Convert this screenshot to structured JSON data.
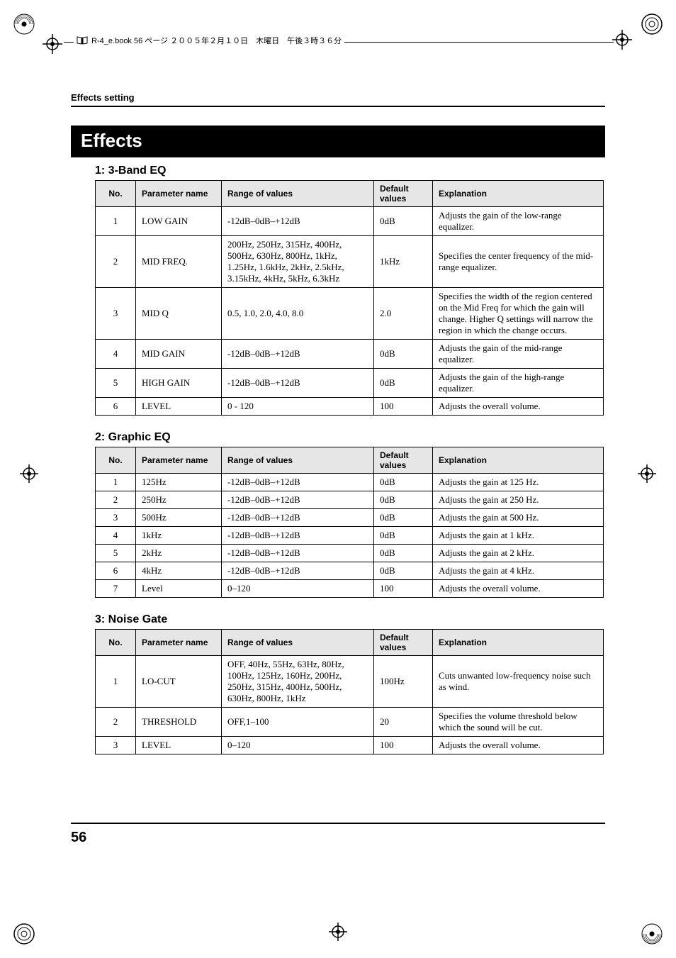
{
  "registration_text": "R-4_e.book  56 ページ  ２００５年２月１０日　木曜日　午後３時３６分",
  "breadcrumb": "Effects setting",
  "title": "Effects",
  "page_number": "56",
  "headers": {
    "no": "No.",
    "param": "Parameter name",
    "range": "Range of values",
    "default": "Default values",
    "explanation": "Explanation"
  },
  "sections": [
    {
      "heading": "1: 3-Band EQ",
      "rows": [
        {
          "no": "1",
          "param": "LOW GAIN",
          "range": "-12dB–0dB–+12dB",
          "def": "0dB",
          "exp": "Adjusts the gain of the low-range equalizer."
        },
        {
          "no": "2",
          "param": "MID FREQ.",
          "range": "200Hz, 250Hz, 315Hz, 400Hz, 500Hz, 630Hz, 800Hz, 1kHz, 1.25Hz, 1.6kHz, 2kHz, 2.5kHz, 3.15kHz, 4kHz, 5kHz, 6.3kHz",
          "def": "1kHz",
          "exp": "Specifies the center frequency of the mid-range equalizer."
        },
        {
          "no": "3",
          "param": "MID Q",
          "range": "0.5, 1.0, 2.0, 4.0, 8.0",
          "def": "2.0",
          "exp": "Specifies the width of the region centered on the Mid Freq for which the gain will change. Higher Q settings will narrow the region in which the change occurs."
        },
        {
          "no": "4",
          "param": "MID GAIN",
          "range": "-12dB–0dB–+12dB",
          "def": "0dB",
          "exp": "Adjusts the gain of the mid-range equalizer."
        },
        {
          "no": "5",
          "param": "HIGH GAIN",
          "range": "-12dB–0dB–+12dB",
          "def": "0dB",
          "exp": "Adjusts the gain of the high-range equalizer."
        },
        {
          "no": "6",
          "param": "LEVEL",
          "range": "0 - 120",
          "def": "100",
          "exp": "Adjusts the overall volume."
        }
      ]
    },
    {
      "heading": "2: Graphic EQ",
      "rows": [
        {
          "no": "1",
          "param": "125Hz",
          "range": "-12dB–0dB–+12dB",
          "def": "0dB",
          "exp": "Adjusts the gain at 125 Hz."
        },
        {
          "no": "2",
          "param": "250Hz",
          "range": "-12dB–0dB–+12dB",
          "def": "0dB",
          "exp": "Adjusts the gain at 250 Hz."
        },
        {
          "no": "3",
          "param": "500Hz",
          "range": "-12dB–0dB–+12dB",
          "def": "0dB",
          "exp": "Adjusts the gain at 500 Hz."
        },
        {
          "no": "4",
          "param": "1kHz",
          "range": "-12dB–0dB–+12dB",
          "def": "0dB",
          "exp": "Adjusts the gain at 1 kHz."
        },
        {
          "no": "5",
          "param": "2kHz",
          "range": "-12dB–0dB–+12dB",
          "def": "0dB",
          "exp": "Adjusts the gain at 2 kHz."
        },
        {
          "no": "6",
          "param": "4kHz",
          "range": "-12dB–0dB–+12dB",
          "def": "0dB",
          "exp": "Adjusts the gain at 4 kHz."
        },
        {
          "no": "7",
          "param": "Level",
          "range": "0–120",
          "def": "100",
          "exp": "Adjusts the overall volume."
        }
      ]
    },
    {
      "heading": "3: Noise Gate",
      "rows": [
        {
          "no": "1",
          "param": "LO-CUT",
          "range": "OFF, 40Hz, 55Hz, 63Hz, 80Hz, 100Hz, 125Hz, 160Hz, 200Hz, 250Hz, 315Hz, 400Hz, 500Hz, 630Hz, 800Hz, 1kHz",
          "def": "100Hz",
          "exp": "Cuts unwanted low-frequency noise such as wind."
        },
        {
          "no": "2",
          "param": "THRESHOLD",
          "range": "OFF,1–100",
          "def": "20",
          "exp": "Specifies the volume threshold below which the sound will be cut."
        },
        {
          "no": "3",
          "param": "LEVEL",
          "range": "0–120",
          "def": "100",
          "exp": "Adjusts the overall volume."
        }
      ]
    }
  ],
  "colors": {
    "title_bg": "#000000",
    "title_fg": "#ffffff",
    "header_bg": "#e6e6e6",
    "border": "#000000"
  }
}
